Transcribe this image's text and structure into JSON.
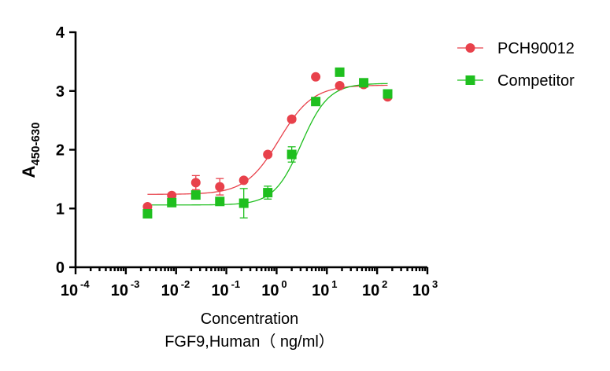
{
  "chart_data": {
    "type": "scatter",
    "title": "",
    "xlabel_line1": "Concentration",
    "xlabel_line2": "FGF9,Human（ ng/ml）",
    "ylabel_main": "A",
    "ylabel_sub": "450-630",
    "x_scale": "log10",
    "xlim": [
      0.0001,
      1000
    ],
    "ylim": [
      0,
      4
    ],
    "x_tick_labels": [
      {
        "base": "10",
        "exp": "-4"
      },
      {
        "base": "10",
        "exp": "-3"
      },
      {
        "base": "10",
        "exp": "-2"
      },
      {
        "base": "10",
        "exp": "-1"
      },
      {
        "base": "10",
        "exp": "0"
      },
      {
        "base": "10",
        "exp": "1"
      },
      {
        "base": "10",
        "exp": "2"
      },
      {
        "base": "10",
        "exp": "3"
      }
    ],
    "y_ticks": [
      "0",
      "1",
      "2",
      "3",
      "4"
    ],
    "grid": false,
    "legend_position": "top-right",
    "series": [
      {
        "name": "PCH90012",
        "color": "#e8414b",
        "marker": "circle",
        "x": [
          0.0027,
          0.0082,
          0.0247,
          0.0741,
          0.222,
          0.667,
          2.0,
          6.0,
          18.0,
          54.0,
          162.0
        ],
        "y": [
          1.03,
          1.22,
          1.44,
          1.37,
          1.48,
          1.92,
          2.52,
          3.24,
          3.09,
          3.11,
          2.9
        ],
        "err": [
          0.03,
          0.04,
          0.12,
          0.14,
          0.02,
          0.03,
          0.04,
          0.03,
          0.03,
          0.03,
          0.04
        ],
        "fit": {
          "bottom": 1.24,
          "top": 3.1,
          "logEC50": 0.05,
          "hill": 1.3
        }
      },
      {
        "name": "Competitor",
        "color": "#1fbf1f",
        "marker": "square",
        "x": [
          0.0027,
          0.0082,
          0.0247,
          0.0741,
          0.222,
          0.667,
          2.0,
          6.0,
          18.0,
          54.0,
          162.0
        ],
        "y": [
          0.91,
          1.1,
          1.23,
          1.12,
          1.09,
          1.27,
          1.92,
          2.82,
          3.32,
          3.14,
          2.95
        ],
        "err": [
          0.03,
          0.04,
          0.05,
          0.06,
          0.25,
          0.11,
          0.13,
          0.06,
          0.04,
          0.03,
          0.04
        ],
        "fit": {
          "bottom": 1.06,
          "top": 3.13,
          "logEC50": 0.49,
          "hill": 1.6
        }
      }
    ]
  }
}
